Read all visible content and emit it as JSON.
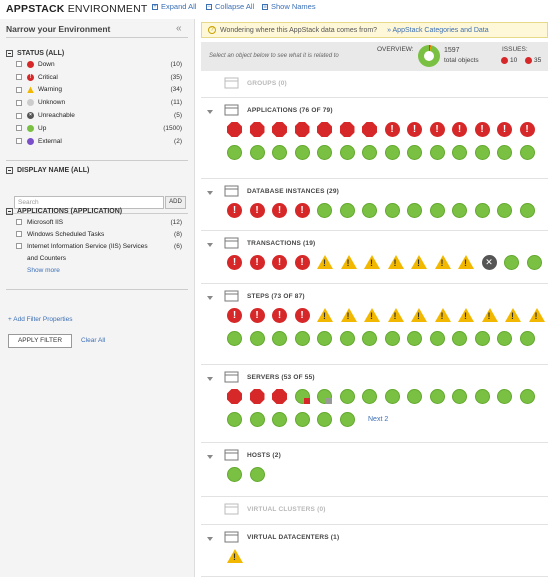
{
  "app": {
    "title_bold": "APPSTACK",
    "title_rest": "ENVIRONMENT"
  },
  "toolbar": {
    "expand_all": "Expand All",
    "collapse_all": "Collapse All",
    "show_names": "Show Names"
  },
  "sidebar": {
    "heading": "Narrow your Environment",
    "status_title": "STATUS (ALL)",
    "statuses": [
      {
        "label": "Down",
        "count": "(10)",
        "color": "#d62828"
      },
      {
        "label": "Critical",
        "count": "(35)",
        "color": "#d62828"
      },
      {
        "label": "Warning",
        "count": "(34)",
        "color": "#f2b800"
      },
      {
        "label": "Unknown",
        "count": "(11)",
        "color": "#cccccc"
      },
      {
        "label": "Unreachable",
        "count": "(5)",
        "color": "#555555"
      },
      {
        "label": "Up",
        "count": "(1500)",
        "color": "#7ac143"
      },
      {
        "label": "External",
        "count": "(2)",
        "color": "#7b4fc9"
      }
    ],
    "display_title": "DISPLAY NAME (ALL)",
    "search_placeholder": "Search",
    "add_label": "ADD",
    "apps_title": "APPLICATIONS (APPLICATION)",
    "apps": [
      {
        "label": "Microsoft IIS",
        "count": "(12)"
      },
      {
        "label": "Windows Scheduled Tasks",
        "count": "(8)"
      },
      {
        "label": "Internet Information Service (IIS) Services",
        "label2": "and Counters",
        "count": "(6)"
      }
    ],
    "show_more": "Show more",
    "add_filter": "+ Add Filter Properties",
    "apply_filter": "APPLY FILTER",
    "clear_all": "Clear All"
  },
  "banner": {
    "text": "Wondering where this AppStack data comes from?",
    "link": "» AppStack Categories and Data"
  },
  "overview": {
    "select_hint": "Select an object below to see what it is related to",
    "label": "OVERVIEW:",
    "total": "1597",
    "total_label": "total objects",
    "issues_label": "ISSUES:",
    "down_count": "10",
    "critical_count": "35"
  },
  "categories": [
    {
      "title": "GROUPS (0)",
      "dim": true,
      "icons": []
    },
    {
      "title": "APPLICATIONS (76 OF 79)",
      "icons": [
        "down",
        "down",
        "down",
        "down",
        "down",
        "down",
        "down",
        "crit",
        "crit",
        "crit",
        "crit",
        "crit",
        "crit",
        "crit",
        "up",
        "up",
        "up",
        "up",
        "up",
        "up",
        "up",
        "up",
        "up",
        "up",
        "up",
        "up",
        "up",
        "up"
      ]
    },
    {
      "title": "DATABASE INSTANCES (29)",
      "icons": [
        "crit",
        "crit",
        "crit",
        "crit",
        "up",
        "up",
        "up",
        "up",
        "up",
        "up",
        "up",
        "up",
        "up",
        "up"
      ]
    },
    {
      "title": "TRANSACTIONS (19)",
      "icons": [
        "crit",
        "crit",
        "crit",
        "crit",
        "warn",
        "warn",
        "warn",
        "warn",
        "warn",
        "warn",
        "warn",
        "unr",
        "up",
        "up"
      ]
    },
    {
      "title": "STEPS (73 OF 87)",
      "icons": [
        "crit",
        "crit",
        "crit",
        "crit",
        "warn",
        "warn",
        "warn",
        "warn",
        "warn",
        "warn",
        "warn",
        "warn",
        "warn",
        "warn",
        "up",
        "up",
        "up",
        "up",
        "up",
        "up",
        "up",
        "up",
        "up",
        "up",
        "up",
        "up",
        "up",
        "up"
      ]
    },
    {
      "title": "SERVERS (53 OF 55)",
      "icons": [
        "down",
        "down",
        "down",
        "mixr",
        "mixg",
        "up",
        "up",
        "up",
        "up",
        "up",
        "up",
        "up",
        "up",
        "up",
        "up",
        "up",
        "up",
        "up",
        "up",
        "up"
      ],
      "next": "Next 2"
    },
    {
      "title": "HOSTS (2)",
      "icons": [
        "up",
        "up"
      ]
    },
    {
      "title": "VIRTUAL CLUSTERS (0)",
      "dim": true,
      "icons": []
    },
    {
      "title": "VIRTUAL DATACENTERS (1)",
      "icons": [
        "warn"
      ]
    }
  ]
}
